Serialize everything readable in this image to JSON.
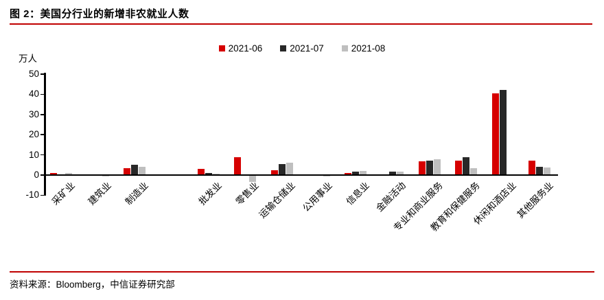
{
  "page": {
    "title": "图 2：美国分行业的新增非农就业人数",
    "source": "资料来源：Bloomberg，中信证券研究部"
  },
  "colors": {
    "rule_red": "#c00000",
    "axis_black": "#000000"
  },
  "chart_data": {
    "type": "bar",
    "title": "美国分行业的新增非农就业人数",
    "unit_label": "万人",
    "ylabel": "万人",
    "ylim": [
      -10,
      50
    ],
    "yticks": [
      50,
      40,
      30,
      20,
      10,
      0,
      -10
    ],
    "grid": false,
    "legend_position": "top-center",
    "gap_after_category_index": 2,
    "categories": [
      "采矿业",
      "建筑业",
      "制造业",
      "批发业",
      "零售业",
      "运输仓储业",
      "公用事业",
      "信息业",
      "金融活动",
      "专业和商业服务",
      "教育和保健服务",
      "休闲和酒店业",
      "其他服务业"
    ],
    "series": [
      {
        "name": "2021-06",
        "color": "#d60000",
        "values": [
          1.0,
          0.1,
          3.1,
          2.9,
          8.7,
          2.3,
          0.1,
          0.8,
          0.1,
          6.6,
          6.9,
          40.3,
          7.1
        ]
      },
      {
        "name": "2021-07",
        "color": "#282828",
        "values": [
          0.1,
          0.0,
          4.8,
          0.9,
          0.1,
          5.3,
          0.0,
          1.6,
          1.7,
          7.1,
          8.7,
          42.0,
          4.0
        ]
      },
      {
        "name": "2021-08",
        "color": "#bfbfbf",
        "values": [
          0.7,
          -0.4,
          3.8,
          0.4,
          -2.9,
          5.8,
          -0.4,
          1.8,
          1.4,
          7.5,
          3.4,
          0.0,
          3.6
        ]
      }
    ]
  }
}
